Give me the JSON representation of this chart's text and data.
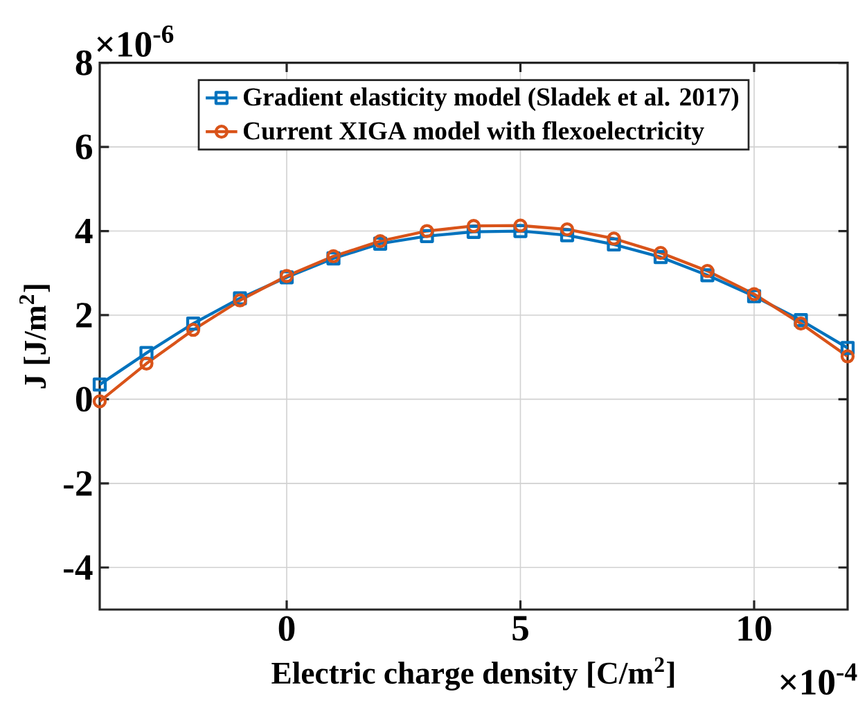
{
  "chart_data": {
    "type": "line",
    "xlabel": "Electric charge density [C/m$^{2}$]",
    "ylabel": "J [J/m$^{2}$]",
    "x": [
      -4,
      -3,
      -2,
      -1,
      0,
      1,
      2,
      3,
      4,
      5,
      6,
      7,
      8,
      9,
      10,
      11,
      12
    ],
    "series": [
      {
        "name": "Gradient elasticity model (Sladek et al. 2017)",
        "color": "#0072bd",
        "marker": "square",
        "values": [
          0.35,
          1.1,
          1.8,
          2.4,
          2.9,
          3.35,
          3.7,
          3.88,
          3.98,
          4.0,
          3.9,
          3.68,
          3.38,
          2.95,
          2.45,
          1.88,
          1.22
        ]
      },
      {
        "name": "Current XIGA model with flexoelectricity",
        "color": "#d95319",
        "marker": "circle",
        "values": [
          -0.05,
          0.85,
          1.65,
          2.35,
          2.93,
          3.4,
          3.76,
          4.0,
          4.12,
          4.13,
          4.04,
          3.82,
          3.48,
          3.05,
          2.5,
          1.8,
          1.02
        ]
      }
    ],
    "xlim": [
      -4,
      12
    ],
    "xticks": [
      0,
      5,
      10
    ],
    "ylim": [
      -5,
      8
    ],
    "yticks": [
      -4,
      -2,
      0,
      2,
      4,
      6,
      8
    ],
    "grid": true,
    "legend": "top",
    "annotations": [
      "×10$^{-6}$",
      "×10$^{-4}$"
    ]
  }
}
